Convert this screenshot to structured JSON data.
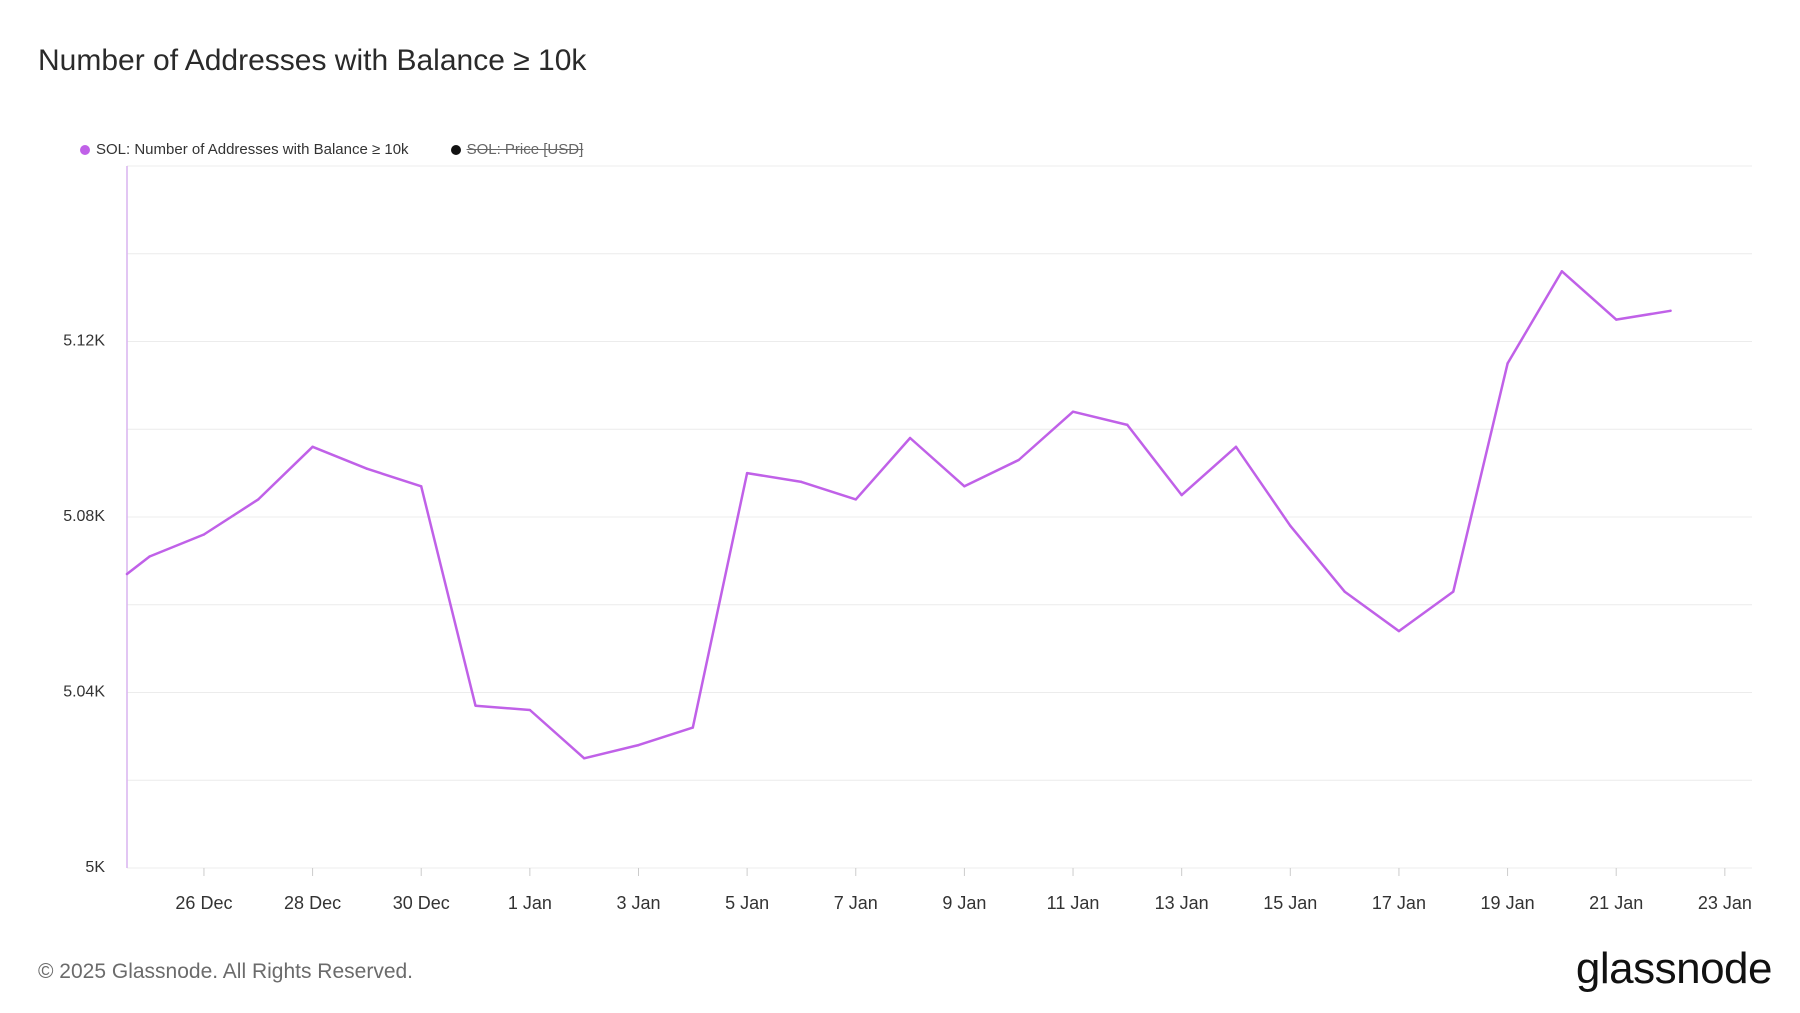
{
  "title": "Number of Addresses with Balance ≥ 10k",
  "legend": [
    {
      "label": "SOL: Number of Addresses with Balance ≥ 10k",
      "color": "#c061e8",
      "active": true
    },
    {
      "label": "SOL: Price [USD]",
      "color": "#111111",
      "active": false
    }
  ],
  "footer": "© 2025 Glassnode. All Rights Reserved.",
  "logo": "glassnode",
  "colors": {
    "line": "#c061e8",
    "grid": "#ececec",
    "axis_text": "#333333"
  },
  "chart_data": {
    "type": "line",
    "title": "Number of Addresses with Balance ≥ 10k",
    "xlabel": "",
    "ylabel": "",
    "ylim": [
      5000,
      5160
    ],
    "y_ticks": [
      "5K",
      "5.04K",
      "5.08K",
      "5.12K"
    ],
    "y_tick_values": [
      5000,
      5040,
      5080,
      5120
    ],
    "x_ticks": [
      "26 Dec",
      "28 Dec",
      "30 Dec",
      "1 Jan",
      "3 Jan",
      "5 Jan",
      "7 Jan",
      "9 Jan",
      "11 Jan",
      "13 Jan",
      "15 Jan",
      "17 Jan",
      "19 Jan",
      "21 Jan",
      "23 Jan"
    ],
    "x_tick_dates": [
      "2024-12-26",
      "2024-12-28",
      "2024-12-30",
      "2025-01-01",
      "2025-01-03",
      "2025-01-05",
      "2025-01-07",
      "2025-01-09",
      "2025-01-11",
      "2025-01-13",
      "2025-01-15",
      "2025-01-17",
      "2025-01-19",
      "2025-01-21",
      "2025-01-23"
    ],
    "xlim": [
      "2024-12-24 14:00",
      "2025-01-23 12:00"
    ],
    "grid": true,
    "legend_position": "top-left",
    "series": [
      {
        "name": "SOL: Number of Addresses with Balance ≥ 10k",
        "x": [
          "2024-12-24 14:00",
          "2024-12-25",
          "2024-12-26",
          "2024-12-27",
          "2024-12-28",
          "2024-12-29",
          "2024-12-30",
          "2024-12-31",
          "2025-01-01",
          "2025-01-02",
          "2025-01-03",
          "2025-01-04",
          "2025-01-05",
          "2025-01-06",
          "2025-01-07",
          "2025-01-08",
          "2025-01-09",
          "2025-01-10",
          "2025-01-11",
          "2025-01-12",
          "2025-01-13",
          "2025-01-14",
          "2025-01-15",
          "2025-01-16",
          "2025-01-17",
          "2025-01-18",
          "2025-01-19",
          "2025-01-20",
          "2025-01-21",
          "2025-01-22"
        ],
        "y": [
          5067,
          5071,
          5076,
          5084,
          5096,
          5091,
          5087,
          5037,
          5036,
          5025,
          5028,
          5032,
          5090,
          5088,
          5084,
          5098,
          5087,
          5093,
          5104,
          5101,
          5085,
          5096,
          5078,
          5063,
          5054,
          5063,
          5115,
          5136,
          5125,
          5127
        ]
      }
    ]
  }
}
